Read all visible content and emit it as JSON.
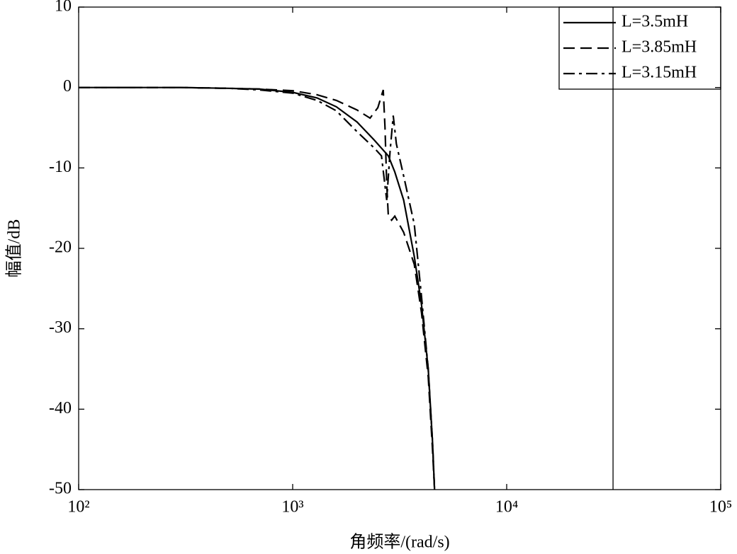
{
  "chart_data": {
    "type": "line",
    "xscale": "log",
    "xlabel": "角频率/(rad/s)",
    "ylabel": "幅值/dB",
    "xlim": [
      100,
      100000
    ],
    "xticks": [
      {
        "value": 100,
        "label": "10²"
      },
      {
        "value": 1000,
        "label": "10³"
      },
      {
        "value": 10000,
        "label": "10⁴"
      },
      {
        "value": 100000,
        "label": "10⁵"
      }
    ],
    "ylim": [
      -50,
      10
    ],
    "yticks": [
      10,
      0,
      -10,
      -20,
      -30,
      -40,
      -50
    ],
    "grid": false,
    "legend": "upper right",
    "vlines": [
      31400
    ],
    "series": [
      {
        "name": "L=3.5mH",
        "color": "#000000",
        "linestyle": "solid",
        "x": [
          100,
          300,
          500,
          700,
          1000,
          1300,
          1600,
          2000,
          2400,
          2800,
          3000,
          3300,
          3700,
          4000,
          4300,
          4500,
          4600
        ],
        "values": [
          0,
          0,
          -0.1,
          -0.2,
          -0.6,
          -1.3,
          -2.4,
          -4.3,
          -6.5,
          -8.5,
          -10.5,
          -14,
          -21,
          -27,
          -35,
          -44,
          -50
        ]
      },
      {
        "name": "L=3.85mH",
        "color": "#000000",
        "linestyle": "dashed",
        "x": [
          100,
          300,
          500,
          700,
          1000,
          1300,
          1600,
          2000,
          2300,
          2500,
          2650,
          2700,
          2750,
          2800,
          2900,
          3000,
          3300,
          3700,
          4000,
          4300,
          4500,
          4600
        ],
        "values": [
          0,
          0,
          -0.1,
          -0.2,
          -0.4,
          -0.9,
          -1.6,
          -2.8,
          -3.8,
          -2.5,
          -0.3,
          -5,
          -12,
          -16,
          -16.5,
          -16,
          -18,
          -22,
          -28,
          -36,
          -45,
          -50
        ]
      },
      {
        "name": "L=3.15mH",
        "color": "#000000",
        "linestyle": "dashdot",
        "x": [
          100,
          300,
          500,
          700,
          1000,
          1300,
          1600,
          2000,
          2400,
          2600,
          2750,
          2850,
          2950,
          3050,
          3300,
          3700,
          4000,
          4300,
          4500,
          4600
        ],
        "values": [
          0,
          0,
          -0.1,
          -0.3,
          -0.7,
          -1.6,
          -2.9,
          -5.5,
          -7.5,
          -8.5,
          -14,
          -8,
          -3.5,
          -7,
          -11,
          -17,
          -26,
          -35,
          -44,
          -50
        ]
      }
    ]
  }
}
